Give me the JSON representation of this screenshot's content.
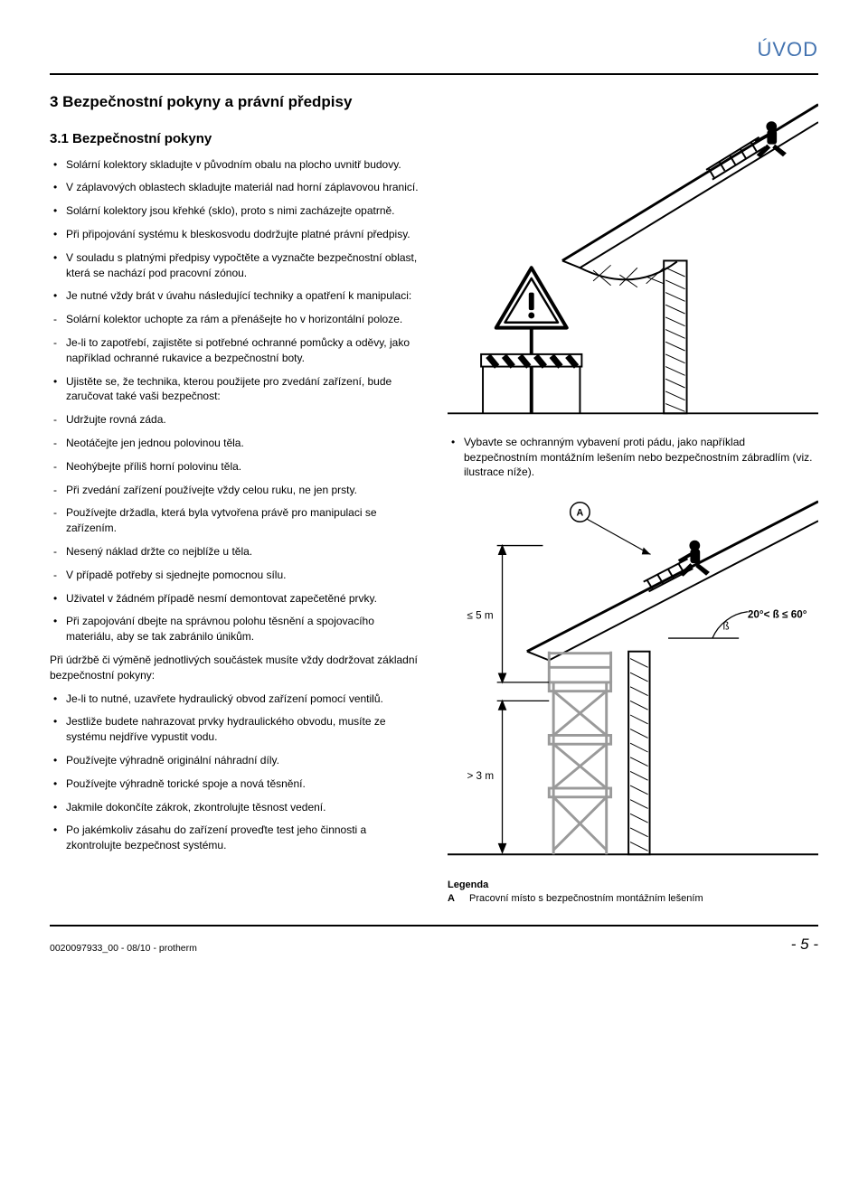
{
  "page_header": "ÚVOD",
  "h1": "3   Bezpečnostní pokyny a právní předpisy",
  "h2": "3.1   Bezpečnostní pokyny",
  "left_list": [
    {
      "t": "b",
      "txt": "Solární kolektory skladujte v původním obalu na plocho uvnitř budovy."
    },
    {
      "t": "b",
      "txt": "V záplavových oblastech skladujte materiál nad horní záplavovou hranicí."
    },
    {
      "t": "b",
      "txt": "Solární kolektory jsou křehké (sklo), proto s nimi zacházejte opatrně."
    },
    {
      "t": "b",
      "txt": "Při připojování systému k bleskosvodu dodržujte platné právní předpisy."
    },
    {
      "t": "b",
      "txt": "V souladu s platnými předpisy vypočtěte a vyznačte bezpečnostní oblast, která se nachází pod pracovní zónou."
    },
    {
      "t": "b",
      "txt": "Je nutné vždy brát v úvahu následující techniky a opatření k manipulaci:"
    },
    {
      "t": "d",
      "txt": "Solární kolektor uchopte za rám a přenášejte ho v horizontální poloze."
    },
    {
      "t": "d",
      "txt": "Je-li to zapotřebí, zajistěte si potřebné ochranné pomůcky a oděvy, jako například ochranné rukavice a bezpečnostní boty."
    },
    {
      "t": "b",
      "txt": "Ujistěte se, že technika, kterou použijete pro zvedání zařízení, bude zaručovat také vaši bezpečnost:"
    },
    {
      "t": "d",
      "txt": "Udržujte rovná záda."
    },
    {
      "t": "d",
      "txt": "Neotáčejte jen jednou polovinou těla."
    },
    {
      "t": "d",
      "txt": "Neohýbejte příliš horní polovinu těla."
    },
    {
      "t": "d",
      "txt": "Při zvedání zařízení používejte vždy celou ruku, ne jen prsty."
    },
    {
      "t": "d",
      "txt": "Používejte držadla, která byla vytvořena právě pro manipulaci se zařízením."
    },
    {
      "t": "d",
      "txt": "Nesený náklad držte co nejblíže u těla."
    },
    {
      "t": "d",
      "txt": "V případě potřeby si sjednejte pomocnou sílu."
    },
    {
      "t": "b",
      "txt": "Uživatel v žádném případě nesmí demontovat zapečetěné prvky."
    },
    {
      "t": "b",
      "txt": "Při zapojování dbejte na správnou polohu těsnění a spojovacího materiálu, aby se tak zabránilo únikům."
    }
  ],
  "mid_para": "Při údržbě či výměně jednotlivých součástek musíte vždy dodržovat základní bezpečnostní pokyny:",
  "left_list2": [
    {
      "t": "b",
      "txt": "Je-li to nutné, uzavřete hydraulický obvod zařízení pomocí ventilů."
    },
    {
      "t": "b",
      "txt": "Jestliže budete nahrazovat prvky hydraulického obvodu, musíte ze systému nejdříve vypustit vodu."
    },
    {
      "t": "b",
      "txt": "Používejte výhradně originální náhradní díly."
    },
    {
      "t": "b",
      "txt": "Používejte výhradně torické spoje a nová těsnění."
    },
    {
      "t": "b",
      "txt": "Jakmile dokončíte zákrok, zkontrolujte těsnost vedení."
    },
    {
      "t": "b",
      "txt": "Po jakémkoliv zásahu do zařízení proveďte test jeho činnosti a zkontrolujte bezpečnost systému."
    }
  ],
  "right_bullet": "Vybavte se ochranným vybavení proti pádu, jako například bezpečnostním montážním lešením nebo bezpečnostním zábradlím (viz. ilustrace níže).",
  "diagram1": {
    "colors": {
      "bg": "#ffffff",
      "stroke": "#000000",
      "hatch": "#000000",
      "ladder": "#9a9a9a",
      "signbg": "#ffffff"
    }
  },
  "diagram2": {
    "label_A": "A",
    "dim_top": "≤ 5 m",
    "dim_bot": "> 3 m",
    "beta": "ß",
    "angle": "20°< ß ≤ 60°",
    "colors": {
      "stroke": "#000000",
      "ladder": "#9a9a9a",
      "circle_bg": "#ffffff"
    }
  },
  "legend_title": "Legenda",
  "legend": [
    {
      "k": "A",
      "v": "Pracovní místo s bezpečnostním montážním lešením"
    }
  ],
  "footer_left": "0020097933_00 - 08/10 - protherm",
  "footer_right": "- 5 -"
}
